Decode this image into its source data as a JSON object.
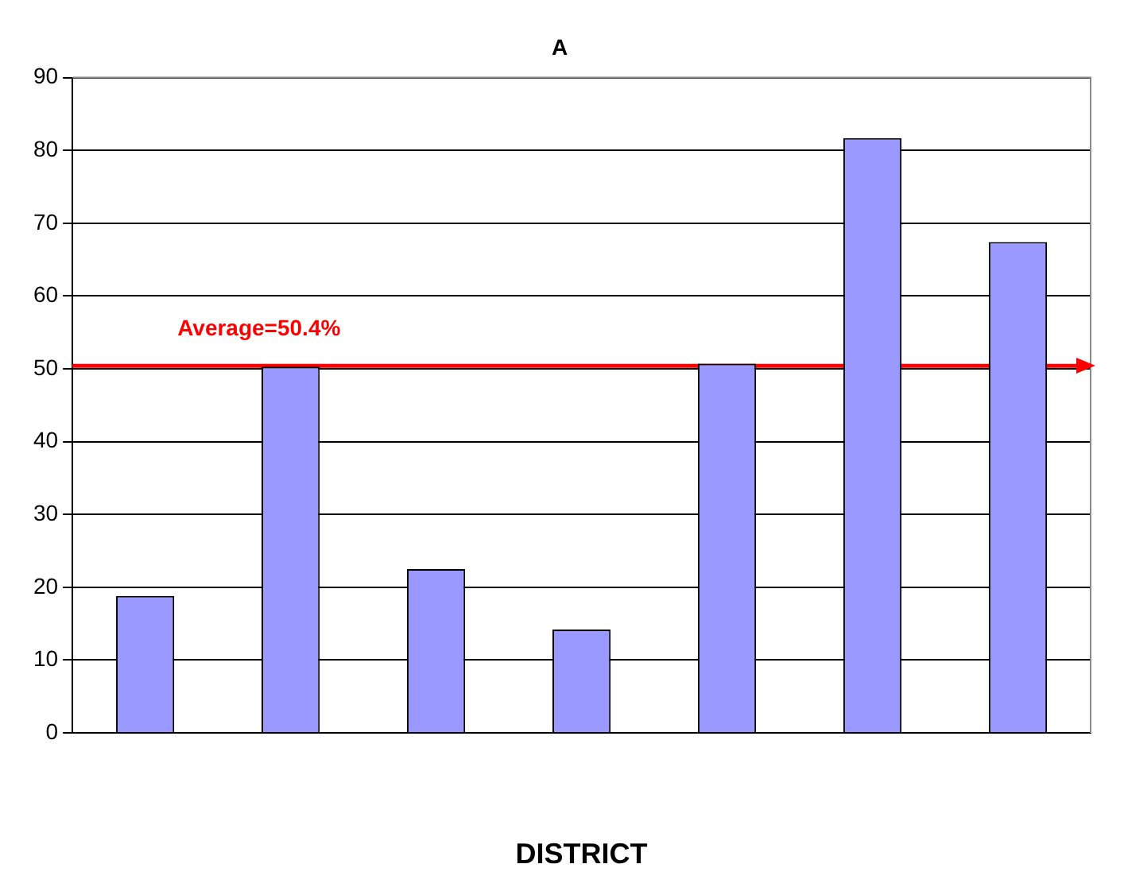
{
  "chart_data": {
    "type": "bar",
    "title": "A",
    "xlabel": "DISTRICT",
    "categories": [
      null,
      null,
      null,
      null,
      null,
      null,
      null
    ],
    "values": [
      18.8,
      50.3,
      22.5,
      14.2,
      50.7,
      81.7,
      67.4
    ],
    "color": "#9999ff",
    "ylim": [
      0,
      90
    ],
    "yticks": [
      0,
      10,
      20,
      30,
      40,
      50,
      60,
      70,
      80,
      90
    ],
    "grid": "y",
    "ref_lines": [
      {
        "axis": "y",
        "value": 50.4,
        "label": "Average=50.4%",
        "color": "#ff0000"
      }
    ]
  }
}
